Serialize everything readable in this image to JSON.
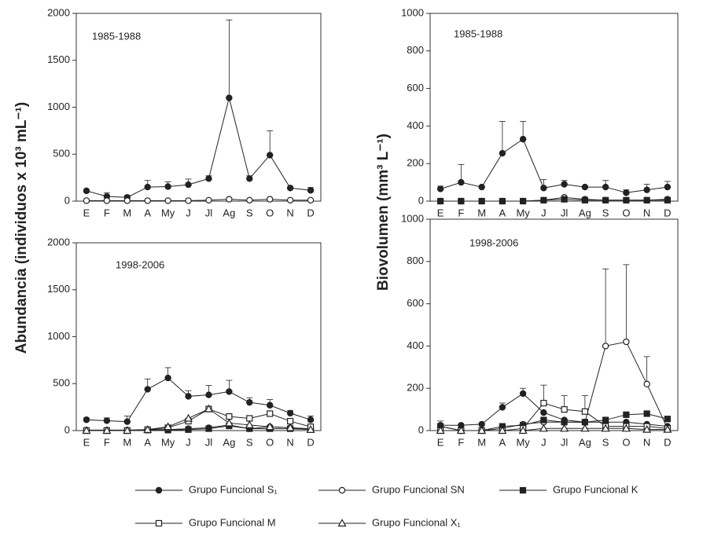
{
  "chart_data": [
    {
      "type": "line",
      "annotation": "1985-1988",
      "y_label": "Abundancia (individuos x 10³ mL⁻¹)",
      "categories": [
        "E",
        "F",
        "M",
        "A",
        "My",
        "J",
        "Jl",
        "Ag",
        "S",
        "O",
        "N",
        "D"
      ],
      "ylim": [
        0,
        2000
      ],
      "yticks": [
        0,
        500,
        1000,
        1500,
        2000
      ],
      "series": [
        {
          "name": "Grupo Funcional S₁",
          "color": "#222222",
          "marker": "filled-circle",
          "values": [
            110,
            50,
            40,
            150,
            155,
            175,
            240,
            1100,
            240,
            490,
            140,
            115
          ],
          "errors": [
            0,
            40,
            20,
            70,
            50,
            60,
            30,
            830,
            30,
            260,
            0,
            30
          ]
        },
        {
          "name": "Grupo Funcional SN",
          "color": "#222222",
          "marker": "open-circle",
          "values": [
            5,
            5,
            5,
            5,
            5,
            5,
            10,
            20,
            10,
            20,
            10,
            10
          ]
        }
      ]
    },
    {
      "type": "line",
      "annotation": "1985-1988",
      "y_label": "Biovolumen (mm³ L⁻¹)",
      "categories": [
        "E",
        "F",
        "M",
        "A",
        "My",
        "J",
        "Jl",
        "Ag",
        "S",
        "O",
        "N",
        "D"
      ],
      "ylim": [
        0,
        1000
      ],
      "yticks": [
        0,
        200,
        400,
        600,
        800,
        1000
      ],
      "series": [
        {
          "name": "Grupo Funcional S₁",
          "color": "#222222",
          "marker": "filled-circle",
          "values": [
            65,
            100,
            75,
            255,
            330,
            70,
            90,
            75,
            75,
            45,
            60,
            75
          ],
          "errors": [
            15,
            95,
            0,
            170,
            95,
            45,
            20,
            0,
            35,
            15,
            30,
            30
          ]
        },
        {
          "name": "Grupo Funcional SN",
          "color": "#222222",
          "marker": "open-circle",
          "values": [
            0,
            0,
            0,
            0,
            0,
            5,
            20,
            10,
            5,
            5,
            5,
            10
          ]
        },
        {
          "name": "Grupo Funcional K",
          "color": "#222222",
          "marker": "filled-square",
          "values": [
            0,
            0,
            0,
            0,
            0,
            5,
            10,
            5,
            5,
            5,
            5,
            5
          ]
        }
      ]
    },
    {
      "type": "line",
      "annotation": "1998-2006",
      "categories": [
        "E",
        "F",
        "M",
        "A",
        "My",
        "J",
        "Jl",
        "Ag",
        "S",
        "O",
        "N",
        "D"
      ],
      "ylim": [
        0,
        2000
      ],
      "yticks": [
        0,
        500,
        1000,
        1500,
        2000
      ],
      "series": [
        {
          "name": "Grupo Funcional S₁",
          "color": "#222222",
          "marker": "filled-circle",
          "values": [
            115,
            105,
            95,
            440,
            560,
            365,
            380,
            415,
            300,
            270,
            185,
            115
          ],
          "errors": [
            20,
            30,
            60,
            110,
            110,
            60,
            100,
            120,
            50,
            60,
            30,
            40
          ]
        },
        {
          "name": "Grupo Funcional SN",
          "color": "#222222",
          "marker": "open-circle",
          "values": [
            5,
            5,
            5,
            10,
            10,
            20,
            30,
            60,
            20,
            40,
            30,
            20
          ]
        },
        {
          "name": "Grupo Funcional K",
          "color": "#222222",
          "marker": "filled-square",
          "values": [
            0,
            0,
            0,
            5,
            5,
            10,
            20,
            50,
            20,
            20,
            20,
            10
          ]
        },
        {
          "name": "Grupo Funcional M",
          "color": "#222222",
          "marker": "open-square",
          "values": [
            0,
            0,
            0,
            10,
            30,
            100,
            230,
            150,
            130,
            180,
            100,
            40
          ]
        },
        {
          "name": "Grupo Funcional X₁",
          "color": "#222222",
          "marker": "open-triangle",
          "values": [
            0,
            0,
            0,
            10,
            40,
            130,
            230,
            80,
            60,
            40,
            30,
            10
          ]
        }
      ]
    },
    {
      "type": "line",
      "annotation": "1998-2006",
      "categories": [
        "E",
        "F",
        "M",
        "A",
        "My",
        "J",
        "Jl",
        "Ag",
        "S",
        "O",
        "N",
        "D"
      ],
      "ylim": [
        0,
        1000
      ],
      "yticks": [
        0,
        200,
        400,
        600,
        800,
        1000
      ],
      "series": [
        {
          "name": "Grupo Funcional S₁",
          "color": "#222222",
          "marker": "filled-circle",
          "values": [
            25,
            25,
            30,
            110,
            175,
            85,
            50,
            40,
            40,
            40,
            30,
            20
          ],
          "errors": [
            20,
            0,
            0,
            20,
            25,
            0,
            0,
            0,
            0,
            0,
            0,
            0
          ]
        },
        {
          "name": "Grupo Funcional SN",
          "color": "#222222",
          "marker": "open-circle",
          "values": [
            20,
            0,
            0,
            10,
            30,
            40,
            40,
            40,
            400,
            420,
            220,
            10
          ],
          "errors": [
            0,
            0,
            0,
            0,
            0,
            0,
            0,
            0,
            365,
            365,
            130,
            0
          ]
        },
        {
          "name": "Grupo Funcional K",
          "color": "#222222",
          "marker": "filled-square",
          "values": [
            20,
            0,
            0,
            20,
            25,
            50,
            40,
            40,
            50,
            75,
            80,
            55
          ]
        },
        {
          "name": "Grupo Funcional M",
          "color": "#222222",
          "marker": "open-square",
          "values": [
            0,
            0,
            0,
            0,
            10,
            130,
            100,
            90,
            20,
            20,
            20,
            10
          ],
          "errors": [
            0,
            0,
            0,
            0,
            0,
            85,
            65,
            75,
            0,
            0,
            0,
            0
          ]
        },
        {
          "name": "Grupo Funcional X₁",
          "color": "#222222",
          "marker": "open-triangle",
          "values": [
            0,
            0,
            0,
            0,
            0,
            10,
            10,
            10,
            10,
            10,
            5,
            5
          ]
        }
      ]
    }
  ]
}
